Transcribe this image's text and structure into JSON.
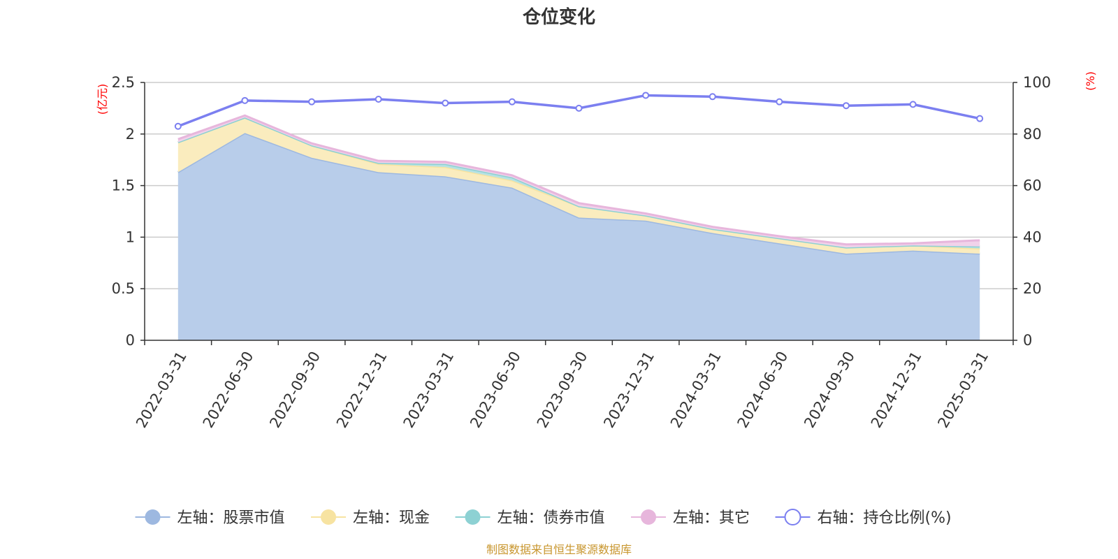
{
  "chart_data": {
    "type": "area",
    "title": "仓位变化",
    "categories": [
      "2022-03-31",
      "2022-06-30",
      "2022-09-30",
      "2022-12-31",
      "2023-03-31",
      "2023-06-30",
      "2023-09-30",
      "2023-12-31",
      "2024-03-31",
      "2024-06-30",
      "2024-09-30",
      "2024-12-31",
      "2025-03-31"
    ],
    "left_axis": {
      "unit": "(亿元)",
      "ylim": [
        0,
        2.5
      ],
      "ticks": [
        "0",
        "0.5",
        "1",
        "1.5",
        "2",
        "2.5"
      ]
    },
    "right_axis": {
      "unit": "(%)",
      "ylim": [
        0,
        100
      ],
      "ticks": [
        "0",
        "20",
        "40",
        "60",
        "80",
        "100"
      ]
    },
    "series": [
      {
        "name": "左轴：股票市值",
        "axis": "left",
        "stacked": true,
        "color": "#9db8e0",
        "fill": "#b8cdea",
        "values": [
          1.63,
          2.01,
          1.77,
          1.63,
          1.59,
          1.48,
          1.19,
          1.16,
          1.04,
          0.94,
          0.84,
          0.87,
          0.84
        ]
      },
      {
        "name": "左轴：现金",
        "axis": "left",
        "stacked": true,
        "color": "#f7e3a1",
        "fill": "#faecbe",
        "values": [
          0.29,
          0.15,
          0.12,
          0.08,
          0.09,
          0.07,
          0.11,
          0.05,
          0.04,
          0.05,
          0.06,
          0.05,
          0.05
        ]
      },
      {
        "name": "左轴：债券市值",
        "axis": "left",
        "stacked": true,
        "color": "#8dd1d3",
        "fill": "#b6e2e3",
        "values": [
          0.0,
          0.0,
          0.0,
          0.01,
          0.03,
          0.03,
          0.0,
          0.0,
          0.0,
          0.0,
          0.0,
          0.0,
          0.02
        ]
      },
      {
        "name": "左轴：其它",
        "axis": "left",
        "stacked": true,
        "color": "#e7b6dc",
        "fill": "#f1d2ea",
        "values": [
          0.03,
          0.02,
          0.02,
          0.02,
          0.02,
          0.02,
          0.03,
          0.02,
          0.02,
          0.02,
          0.03,
          0.02,
          0.06
        ]
      },
      {
        "name": "右轴：持仓比例(%)",
        "axis": "right",
        "stacked": false,
        "color": "#7b7ff0",
        "values": [
          83,
          93,
          92.5,
          93.5,
          92,
          92.5,
          90,
          95,
          94.5,
          92.5,
          91,
          91.5,
          86
        ]
      }
    ],
    "legend_position": "bottom",
    "grid": true
  },
  "footer": {
    "source": "制图数据来自恒生聚源数据库",
    "source_color": "#c8962e"
  },
  "colors": {
    "unit_label": "#ff0000",
    "axis": "#333333",
    "grid": "#cccccc"
  }
}
